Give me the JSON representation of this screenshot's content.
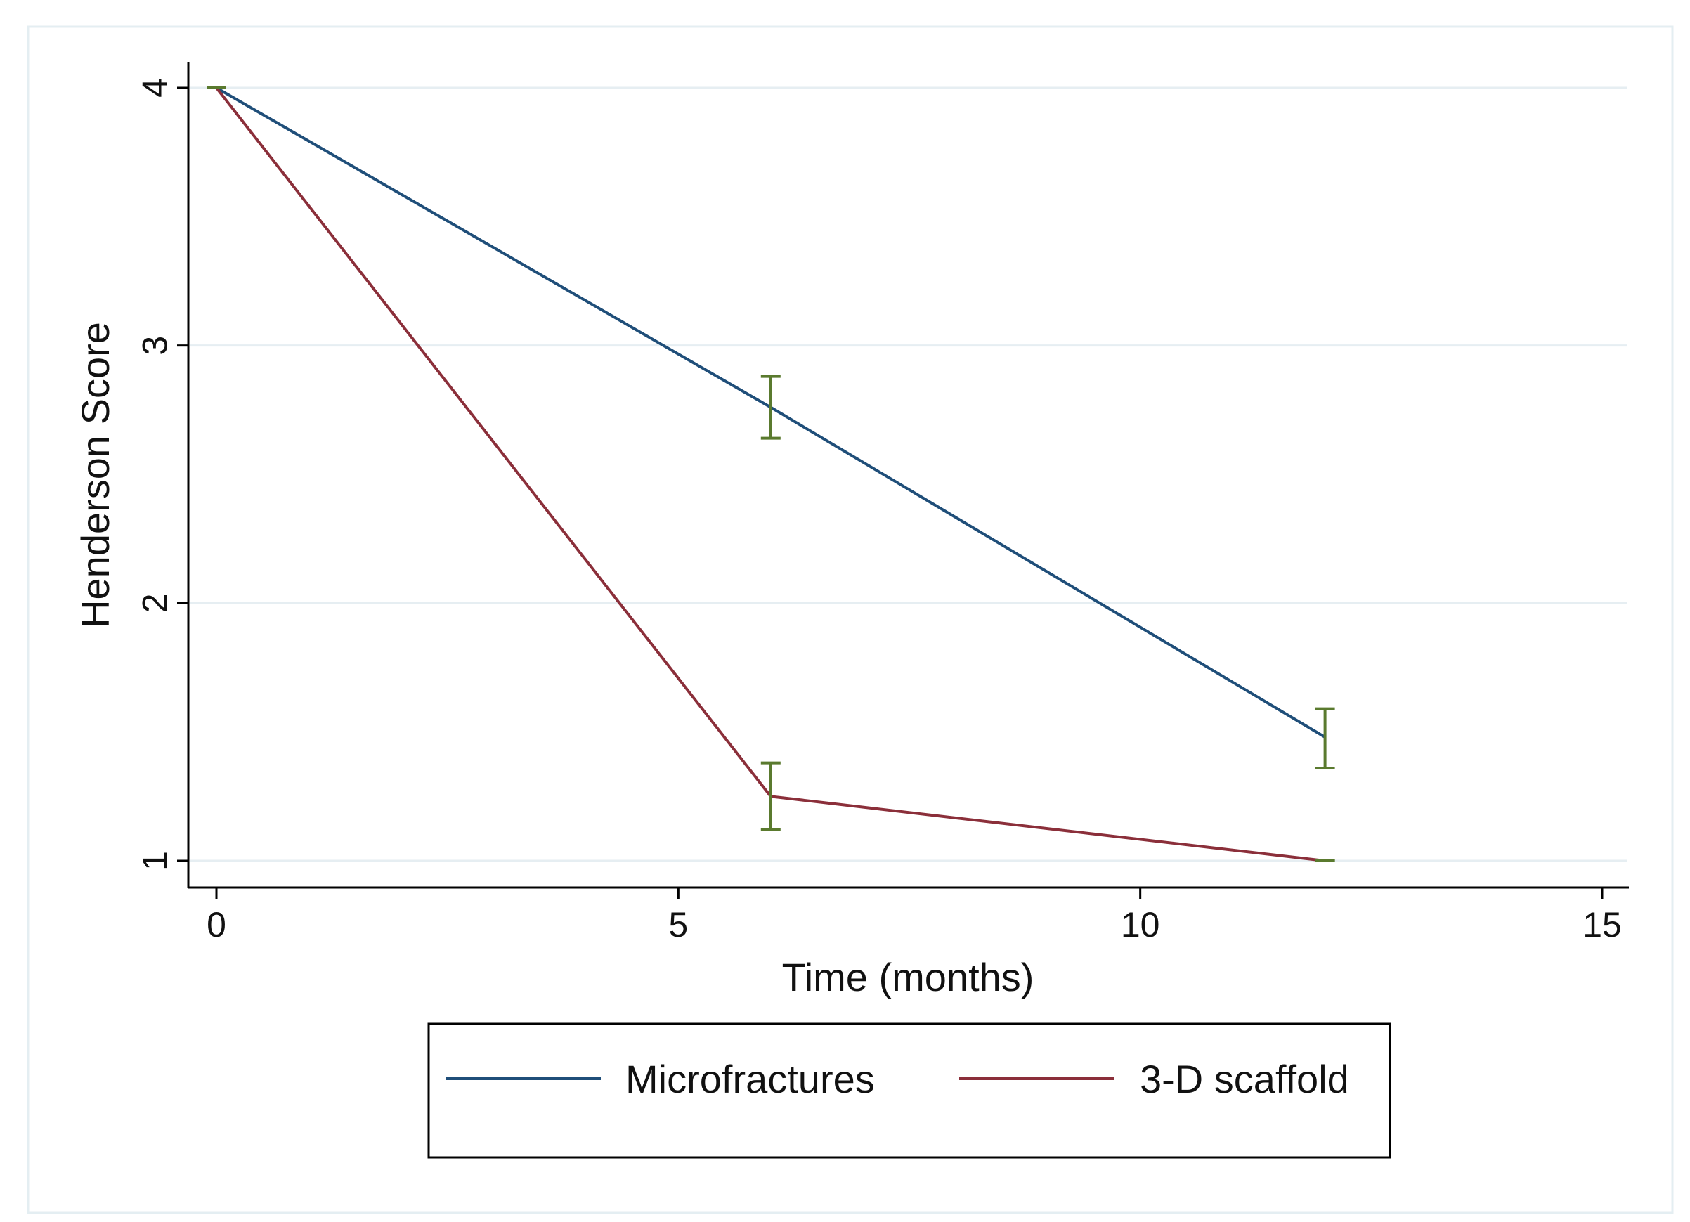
{
  "chart_data": {
    "type": "line",
    "title": "",
    "xlabel": "Time (months)",
    "ylabel": "Henderson Score",
    "xlim": [
      -0.3,
      15.3
    ],
    "ylim": [
      0.9,
      4.1
    ],
    "xticks": [
      0,
      5,
      10,
      15
    ],
    "yticks": [
      1,
      2,
      3,
      4
    ],
    "xtick_labels": [
      "0",
      "5",
      "10",
      "15"
    ],
    "ytick_labels": [
      "1",
      "2",
      "3",
      "4"
    ],
    "grid": true,
    "legend_position": "bottom",
    "error_bar_color": "#5a7a2e",
    "series": [
      {
        "name": "Microfractures",
        "color": "#1f4e79",
        "x": [
          0,
          6,
          12
        ],
        "y": [
          4,
          2.76,
          1.48
        ],
        "err_low": [
          4,
          2.64,
          1.36
        ],
        "err_high": [
          4,
          2.88,
          1.59
        ]
      },
      {
        "name": "3-D scaffold",
        "color": "#8b2f3a",
        "x": [
          0,
          6,
          12
        ],
        "y": [
          4,
          1.25,
          1.0
        ],
        "err_low": [
          4,
          1.12,
          1.0
        ],
        "err_high": [
          4,
          1.38,
          1.0
        ]
      }
    ]
  }
}
